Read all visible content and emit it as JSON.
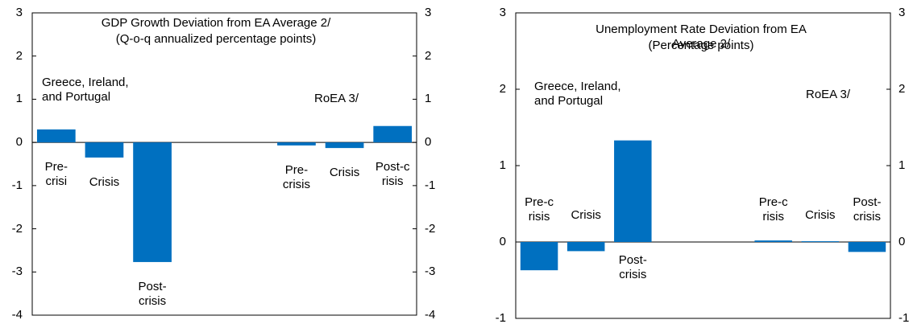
{
  "chart_data": [
    {
      "type": "bar",
      "title": "GDP Growth Deviation from EA Average 2/",
      "subtitle": "(Q-o-q annualized percentage points)",
      "categories": [
        "Pre-\ncrisi",
        "Crisis",
        "Post-\ncrisis",
        null,
        null,
        "Pre-\ncrisis",
        "Crisis",
        "Post-c\nrisis"
      ],
      "values": [
        0.3,
        -0.35,
        -2.77,
        null,
        null,
        -0.07,
        -0.13,
        0.38
      ],
      "color": "#0070c0",
      "ylim": [
        -4,
        3
      ],
      "yticks": [
        -4,
        -3,
        -2,
        -1,
        0,
        1,
        2,
        3
      ],
      "annotations": [
        "Greece, Ireland,\nand Portugal",
        "RoEA 3/"
      ]
    },
    {
      "type": "bar",
      "title": "Unemployment Rate Deviation from EA Average 2/",
      "subtitle": "(Percentage points)",
      "categories": [
        "Pre-c\nrisis",
        "Crisis",
        "Post-\ncrisis",
        null,
        null,
        "Pre-c\nrisis",
        "Crisis",
        "Post-\ncrisis"
      ],
      "values": [
        -0.37,
        -0.12,
        1.33,
        null,
        null,
        0.02,
        0.01,
        -0.13
      ],
      "color": "#0070c0",
      "ylim": [
        -1,
        3
      ],
      "yticks": [
        -1,
        0,
        1,
        2,
        3
      ],
      "annotations": [
        "Greece, Ireland,\nand Portugal",
        "RoEA 3/"
      ]
    }
  ]
}
